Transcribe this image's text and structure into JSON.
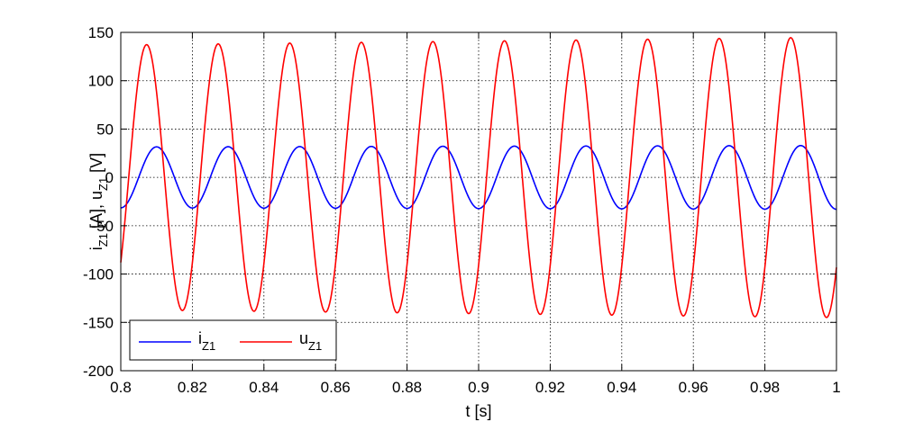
{
  "chart_data": {
    "type": "line",
    "title": "",
    "xlabel": "t [s]",
    "ylabel": "i<sub>Z1</sub> [A], u<sub>Z1</sub> [V]",
    "ylabel_parts": [
      {
        "t": "i",
        "sub": "Z1"
      },
      {
        "t": " [A], u",
        "sub": ""
      },
      {
        "t": "",
        "sub": "Z1"
      },
      {
        "t": " [V]",
        "sub": ""
      }
    ],
    "xlim": [
      0.8,
      1.0
    ],
    "ylim": [
      -200,
      150
    ],
    "xticks": [
      0.8,
      0.82,
      0.84,
      0.86,
      0.88,
      0.9,
      0.92,
      0.94,
      0.96,
      0.98,
      1
    ],
    "xtick_labels": [
      "0.8",
      "0.82",
      "0.84",
      "0.86",
      "0.88",
      "0.9",
      "0.92",
      "0.94",
      "0.96",
      "0.98",
      "1"
    ],
    "yticks": [
      -200,
      -150,
      -100,
      -50,
      0,
      50,
      100,
      150
    ],
    "ytick_labels": [
      "-200",
      "-150",
      "-100",
      "-50",
      "0",
      "50",
      "100",
      "150"
    ],
    "grid": true,
    "legend_position": "bottom-left",
    "series": [
      {
        "name_main": "i",
        "name_sub": "Z1",
        "color": "#0000ff",
        "waveform": "sine",
        "frequency_hz": 50,
        "amplitude_start": 31.5,
        "amplitude_end": 33,
        "value_at_start": -31.5,
        "peak_times": [
          0.81,
          0.83,
          0.85,
          0.87,
          0.89,
          0.91,
          0.93,
          0.95,
          0.97,
          0.99
        ]
      },
      {
        "name_main": "u",
        "name_sub": "Z1",
        "color": "#ff0000",
        "waveform": "sine",
        "frequency_hz": 50,
        "amplitude_start": 137,
        "amplitude_end": 145,
        "value_at_start": -88,
        "peak_times": [
          0.8075,
          0.8275,
          0.8475,
          0.8675,
          0.8875,
          0.9075,
          0.9275,
          0.9475,
          0.9675,
          0.9875
        ]
      }
    ]
  }
}
